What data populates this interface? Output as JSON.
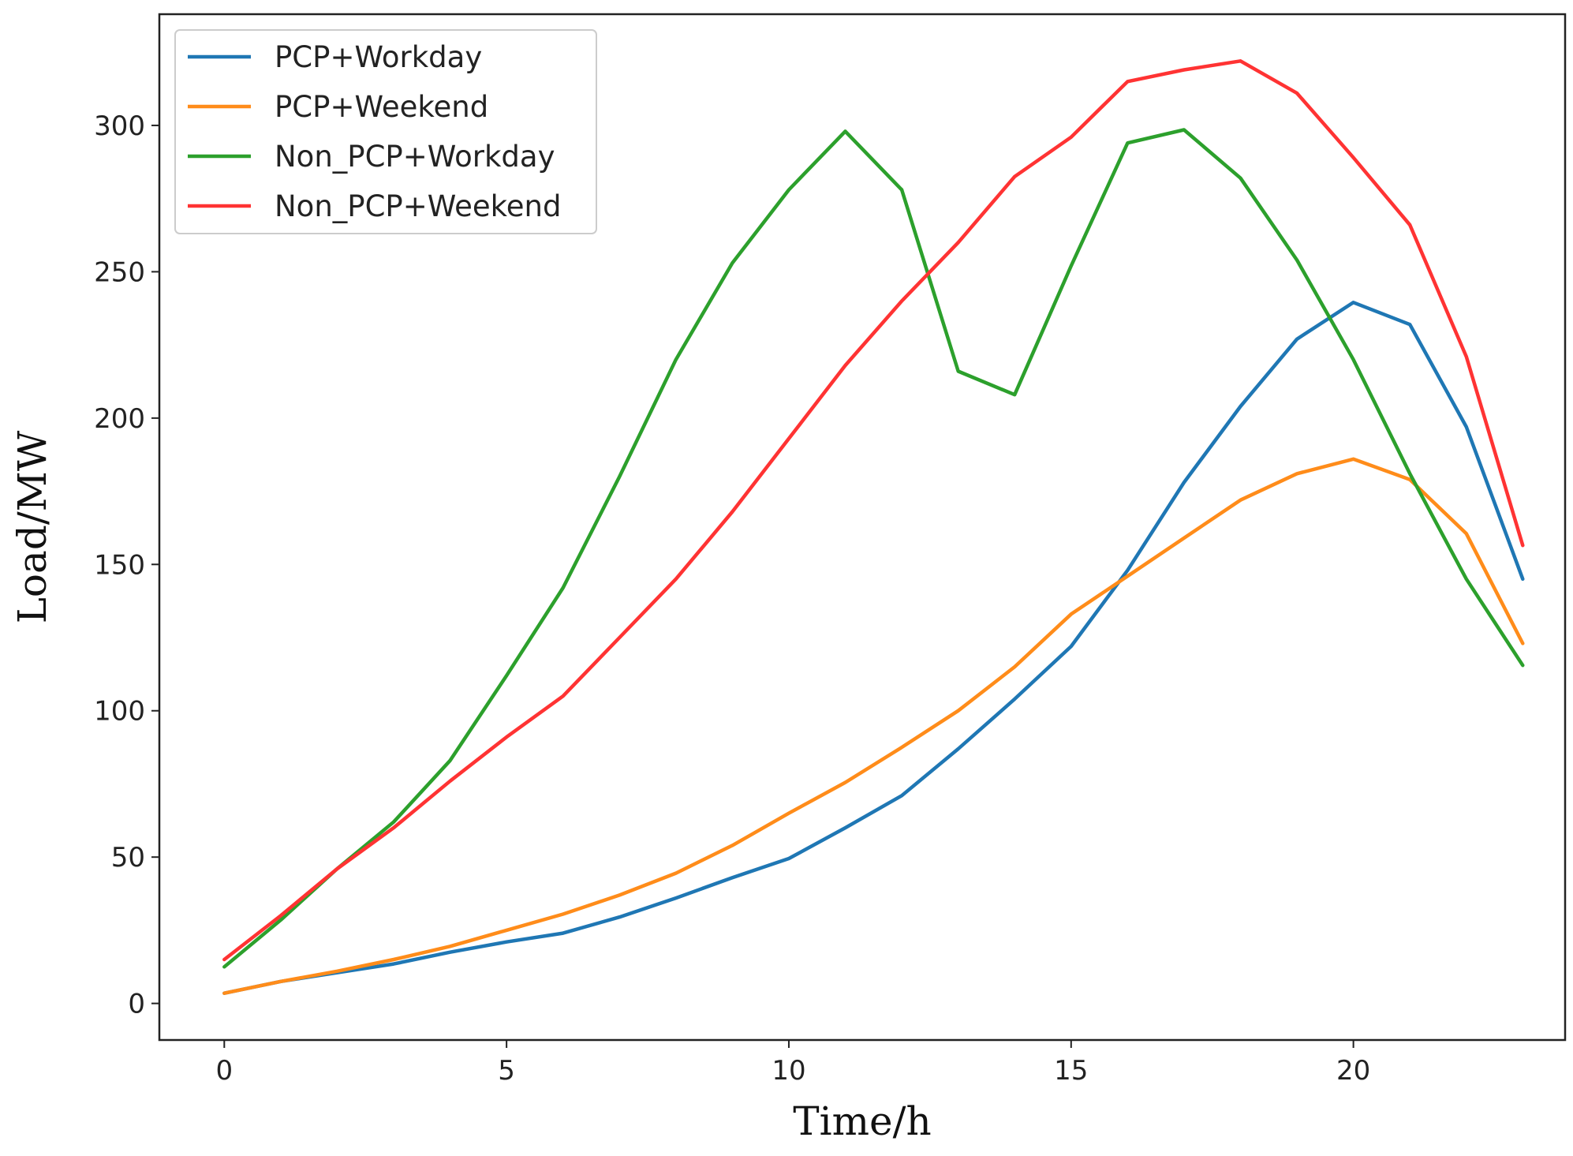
{
  "chart_data": {
    "type": "line",
    "title": "",
    "xlabel": "Time/h",
    "ylabel": "Load/MW",
    "xlim": [
      -1.15,
      23.75
    ],
    "ylim": [
      -12.5,
      338
    ],
    "xticks": [
      0,
      5,
      10,
      15,
      20
    ],
    "yticks": [
      0,
      50,
      100,
      150,
      200,
      250,
      300
    ],
    "grid": false,
    "legend_position": "top-left",
    "x": [
      0,
      1,
      2,
      3,
      4,
      5,
      6,
      7,
      8,
      9,
      10,
      11,
      12,
      13,
      14,
      15,
      16,
      17,
      18,
      19,
      20,
      21,
      22,
      23
    ],
    "series": [
      {
        "name": "PCP+Workday",
        "color": "#1f77b4",
        "values": [
          3.5,
          7.5,
          10.5,
          13.5,
          17.5,
          21,
          24,
          29.5,
          36,
          43,
          49.5,
          60,
          71,
          87,
          104,
          122,
          148,
          178,
          204,
          227,
          239.5,
          232,
          197,
          145
        ]
      },
      {
        "name": "PCP+Weekend",
        "color": "#ff8c1a",
        "values": [
          3.5,
          7.5,
          11,
          15,
          19.5,
          25,
          30.5,
          37,
          44.5,
          54,
          65,
          75.5,
          87.5,
          100,
          115,
          133,
          146,
          159,
          172,
          181,
          186,
          179,
          160.5,
          123
        ]
      },
      {
        "name": "Non_PCP+Workday",
        "color": "#2ca02c",
        "values": [
          12.5,
          28.5,
          46,
          62,
          83,
          112,
          142,
          180,
          220,
          253,
          278,
          298,
          278,
          216,
          208,
          252,
          294,
          298.5,
          282,
          254,
          220,
          181,
          145,
          115.5
        ]
      },
      {
        "name": "Non_PCP+Weekend",
        "color": "#ff3333",
        "values": [
          15,
          30,
          46,
          60,
          76,
          91,
          105,
          125,
          145,
          168,
          193,
          218,
          240,
          260,
          282.5,
          296,
          315,
          319,
          322,
          311,
          289,
          266,
          221,
          156.5
        ]
      }
    ]
  }
}
